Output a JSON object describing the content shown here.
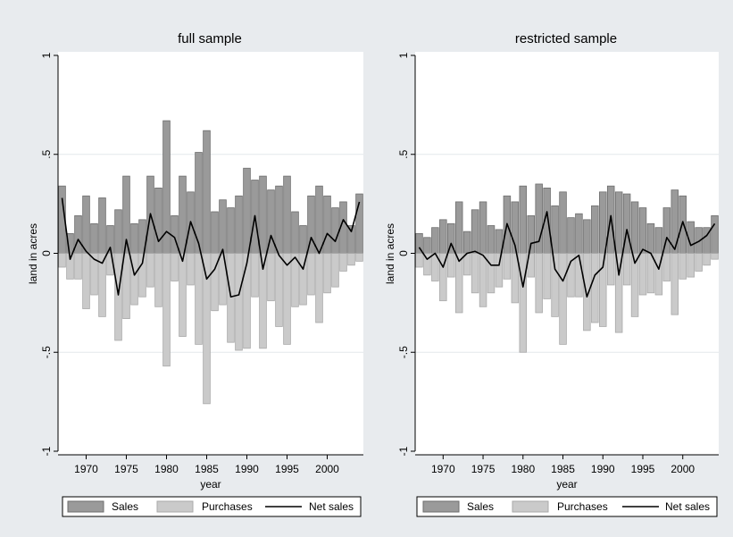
{
  "colors": {
    "outer_bg": "#e8ebee",
    "plot_bg": "#ffffff",
    "sales_fill": "#9a9a9a",
    "sales_stroke": "#6e6e6e",
    "purchases_fill": "#cacaca",
    "purchases_stroke": "#a9a9a9",
    "net_line": "#000000",
    "grid": "#e4e8ec"
  },
  "legend_items": [
    {
      "key": "sales",
      "label": "Sales"
    },
    {
      "key": "purchases",
      "label": "Purchases"
    },
    {
      "key": "net",
      "label": "Net sales"
    }
  ],
  "chart_data": [
    {
      "type": "bar",
      "title": "full sample",
      "xlabel": "year",
      "ylabel": "land in acres",
      "ylim": [
        -1,
        1
      ],
      "yticks": [
        -1,
        -0.5,
        0,
        0.5,
        1
      ],
      "ytick_labels": [
        "-1",
        "-.5",
        "0",
        ".5",
        "1"
      ],
      "xticks": [
        1970,
        1975,
        1980,
        1985,
        1990,
        1995,
        2000
      ],
      "grid": true,
      "legend": "bottom",
      "x": [
        1967,
        1968,
        1969,
        1970,
        1971,
        1972,
        1973,
        1974,
        1975,
        1976,
        1977,
        1978,
        1979,
        1980,
        1981,
        1982,
        1983,
        1984,
        1985,
        1986,
        1987,
        1988,
        1989,
        1990,
        1991,
        1992,
        1993,
        1994,
        1995,
        1996,
        1997,
        1998,
        1999,
        2000,
        2001,
        2002,
        2003,
        2004
      ],
      "series": [
        {
          "name": "Sales",
          "kind": "bar",
          "values": [
            0.34,
            0.1,
            0.19,
            0.29,
            0.15,
            0.28,
            0.14,
            0.22,
            0.39,
            0.15,
            0.17,
            0.39,
            0.33,
            0.67,
            0.19,
            0.39,
            0.31,
            0.51,
            0.62,
            0.21,
            0.27,
            0.23,
            0.29,
            0.43,
            0.37,
            0.39,
            0.32,
            0.34,
            0.39,
            0.21,
            0.14,
            0.29,
            0.34,
            0.29,
            0.23,
            0.26,
            0.14,
            0.3
          ]
        },
        {
          "name": "Purchases",
          "kind": "bar",
          "values": [
            -0.07,
            -0.13,
            -0.13,
            -0.28,
            -0.21,
            -0.32,
            -0.11,
            -0.44,
            -0.33,
            -0.26,
            -0.22,
            -0.17,
            -0.27,
            -0.57,
            -0.14,
            -0.42,
            -0.16,
            -0.46,
            -0.76,
            -0.29,
            -0.26,
            -0.45,
            -0.49,
            -0.48,
            -0.22,
            -0.48,
            -0.24,
            -0.37,
            -0.46,
            -0.27,
            -0.26,
            -0.21,
            -0.35,
            -0.2,
            -0.17,
            -0.09,
            -0.06,
            -0.04
          ]
        },
        {
          "name": "Net sales",
          "kind": "line",
          "values": [
            0.28,
            -0.03,
            0.07,
            0.01,
            -0.03,
            -0.05,
            0.03,
            -0.21,
            0.07,
            -0.11,
            -0.05,
            0.2,
            0.06,
            0.11,
            0.08,
            -0.04,
            0.16,
            0.05,
            -0.13,
            -0.08,
            0.02,
            -0.22,
            -0.21,
            -0.05,
            0.19,
            -0.08,
            0.09,
            -0.01,
            -0.06,
            -0.02,
            -0.08,
            0.08,
            0.0,
            0.1,
            0.06,
            0.17,
            0.11,
            0.26
          ]
        }
      ]
    },
    {
      "type": "bar",
      "title": "restricted sample",
      "xlabel": "year",
      "ylabel": "land in acres",
      "ylim": [
        -1,
        1
      ],
      "yticks": [
        -1,
        -0.5,
        0,
        0.5,
        1
      ],
      "ytick_labels": [
        "-1",
        "-.5",
        "0",
        ".5",
        "1"
      ],
      "xticks": [
        1970,
        1975,
        1980,
        1985,
        1990,
        1995,
        2000
      ],
      "grid": true,
      "legend": "bottom",
      "x": [
        1967,
        1968,
        1969,
        1970,
        1971,
        1972,
        1973,
        1974,
        1975,
        1976,
        1977,
        1978,
        1979,
        1980,
        1981,
        1982,
        1983,
        1984,
        1985,
        1986,
        1987,
        1988,
        1989,
        1990,
        1991,
        1992,
        1993,
        1994,
        1995,
        1996,
        1997,
        1998,
        1999,
        2000,
        2001,
        2002,
        2003,
        2004
      ],
      "series": [
        {
          "name": "Sales",
          "kind": "bar",
          "values": [
            0.1,
            0.08,
            0.13,
            0.17,
            0.15,
            0.26,
            0.11,
            0.22,
            0.26,
            0.14,
            0.12,
            0.29,
            0.26,
            0.34,
            0.19,
            0.35,
            0.33,
            0.24,
            0.31,
            0.18,
            0.2,
            0.17,
            0.24,
            0.31,
            0.34,
            0.31,
            0.3,
            0.26,
            0.23,
            0.15,
            0.13,
            0.23,
            0.32,
            0.29,
            0.16,
            0.13,
            0.13,
            0.19
          ]
        },
        {
          "name": "Purchases",
          "kind": "bar",
          "values": [
            -0.07,
            -0.11,
            -0.14,
            -0.24,
            -0.12,
            -0.3,
            -0.11,
            -0.2,
            -0.27,
            -0.2,
            -0.17,
            -0.13,
            -0.25,
            -0.5,
            -0.12,
            -0.3,
            -0.23,
            -0.32,
            -0.46,
            -0.22,
            -0.22,
            -0.39,
            -0.35,
            -0.37,
            -0.16,
            -0.4,
            -0.16,
            -0.32,
            -0.21,
            -0.2,
            -0.21,
            -0.14,
            -0.31,
            -0.13,
            -0.12,
            -0.09,
            -0.06,
            -0.03
          ]
        },
        {
          "name": "Net sales",
          "kind": "line",
          "values": [
            0.03,
            -0.03,
            0.0,
            -0.07,
            0.05,
            -0.04,
            0.0,
            0.01,
            -0.01,
            -0.06,
            -0.06,
            0.15,
            0.04,
            -0.17,
            0.05,
            0.06,
            0.21,
            -0.08,
            -0.14,
            -0.04,
            -0.01,
            -0.22,
            -0.11,
            -0.07,
            0.19,
            -0.11,
            0.12,
            -0.05,
            0.02,
            0.0,
            -0.08,
            0.08,
            0.02,
            0.16,
            0.04,
            0.06,
            0.09,
            0.15
          ]
        }
      ]
    }
  ]
}
